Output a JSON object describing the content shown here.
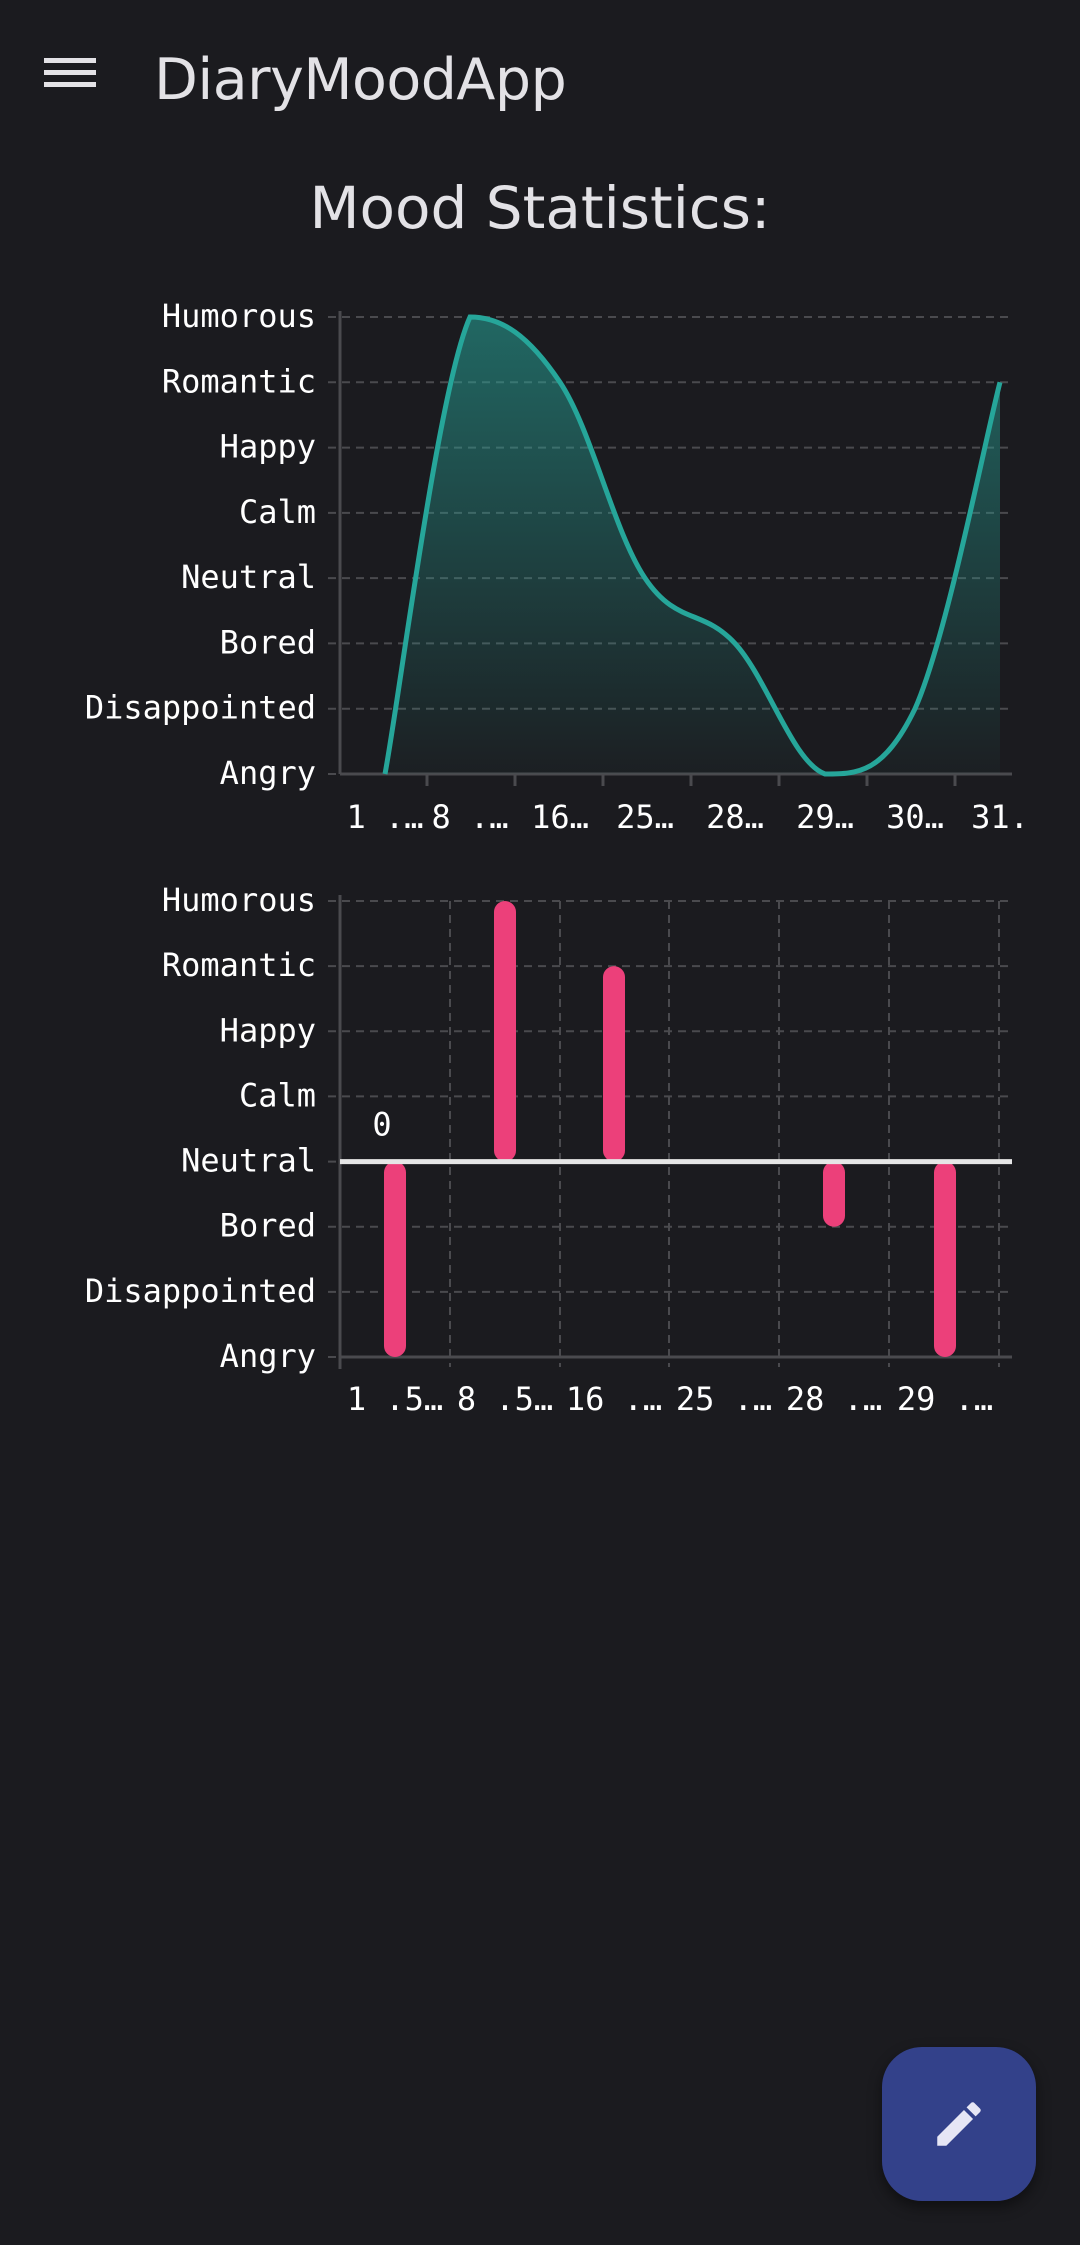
{
  "app_bar": {
    "title": "DiaryMoodApp",
    "menu_icon": "hamburger-menu-icon"
  },
  "page": {
    "title": "Mood Statistics:"
  },
  "fab": {
    "icon": "pencil-edit-icon",
    "color": "#33418a"
  },
  "colors": {
    "background": "#1b1b1f",
    "line": "#26a69a",
    "bar": "#ec407a",
    "grid": "#4a4a4e"
  },
  "chart_data": [
    {
      "type": "area",
      "mood_levels": [
        "Angry",
        "Disappointed",
        "Bored",
        "Neutral",
        "Calm",
        "Happy",
        "Romantic",
        "Humorous"
      ],
      "x_tick_labels": [
        "1 .…",
        "8 .…",
        "16…",
        "25…",
        "28…",
        "29…",
        "30…",
        "31."
      ],
      "values": [
        0,
        7,
        6,
        3,
        2,
        0,
        1,
        6
      ],
      "smooth": true,
      "grid": true
    },
    {
      "type": "bar",
      "mood_levels": [
        "Angry",
        "Disappointed",
        "Bored",
        "Neutral",
        "Calm",
        "Happy",
        "Romantic",
        "Humorous"
      ],
      "baseline_level": 3,
      "baseline_label": "0",
      "x_tick_labels": [
        "1 .5…",
        "8 .5…",
        "16 .…",
        "25 .…",
        "28 .…",
        "29 .…"
      ],
      "values": [
        -3,
        4,
        3,
        0,
        -1,
        -3
      ],
      "grid": true
    }
  ]
}
